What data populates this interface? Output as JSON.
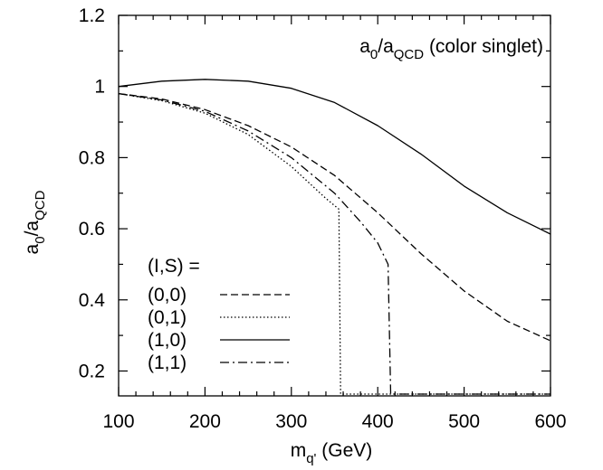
{
  "chart_data": {
    "type": "line",
    "title": "",
    "annotation": {
      "main": "a",
      "sub1": "0",
      "slash": "/a",
      "sub2": "QCD",
      "rest": " (color singlet)"
    },
    "ylabel": {
      "main": "a",
      "sub1": "0",
      "slash": "/a",
      "sub2": "QCD"
    },
    "xlabel": {
      "main": "m",
      "sub": "q'",
      "rest": " (GeV)"
    },
    "xlim": [
      100,
      600
    ],
    "ylim": [
      0.13,
      1.2
    ],
    "xticks": [
      100,
      200,
      300,
      400,
      500,
      600
    ],
    "xtick_labels": [
      "100",
      "200",
      "300",
      "400",
      "500",
      "600"
    ],
    "yticks": [
      0.2,
      0.4,
      0.6,
      0.8,
      1.0,
      1.2
    ],
    "ytick_labels": [
      "0.2",
      "0.4",
      "0.6",
      "0.8",
      "1",
      "1.2"
    ],
    "grid": false,
    "legend": {
      "title": "(I,S) =",
      "placement": "bottom-left"
    },
    "series": [
      {
        "name": "(0,0)",
        "dash": "dashed",
        "x": [
          100,
          150,
          200,
          250,
          300,
          350,
          400,
          450,
          500,
          550,
          600
        ],
        "y": [
          0.98,
          0.965,
          0.935,
          0.89,
          0.83,
          0.75,
          0.645,
          0.53,
          0.425,
          0.34,
          0.285
        ]
      },
      {
        "name": "(0,1)",
        "dash": "dotted",
        "x": [
          100,
          150,
          200,
          250,
          300,
          320,
          340,
          355,
          357,
          360,
          400,
          500,
          600
        ],
        "y": [
          0.98,
          0.96,
          0.925,
          0.865,
          0.775,
          0.73,
          0.685,
          0.655,
          0.135,
          0.135,
          0.135,
          0.135,
          0.135
        ]
      },
      {
        "name": "(1,0)",
        "dash": "solid",
        "x": [
          100,
          150,
          200,
          250,
          300,
          350,
          400,
          450,
          500,
          550,
          600
        ],
        "y": [
          1.0,
          1.015,
          1.02,
          1.015,
          0.995,
          0.955,
          0.89,
          0.81,
          0.72,
          0.645,
          0.585
        ]
      },
      {
        "name": "(1,1)",
        "dash": "dashdot",
        "x": [
          100,
          150,
          200,
          250,
          300,
          350,
          380,
          400,
          412,
          415,
          420,
          500,
          600
        ],
        "y": [
          0.98,
          0.962,
          0.93,
          0.875,
          0.8,
          0.7,
          0.62,
          0.56,
          0.5,
          0.135,
          0.135,
          0.135,
          0.135
        ]
      }
    ]
  }
}
